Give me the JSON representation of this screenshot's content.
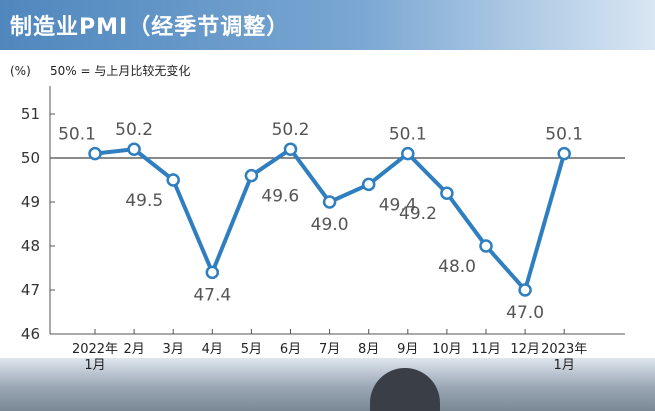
{
  "header": {
    "title": "制造业PMI（经季节调整）"
  },
  "chart_data": {
    "type": "line",
    "title": "制造业PMI（经季节调整）",
    "unit_label": "(%)",
    "reference_note": "50% = 与上月比较无变化",
    "xlabel": "",
    "ylabel": "",
    "ylim": [
      46,
      51.5
    ],
    "yticks": [
      46,
      47,
      48,
      49,
      50,
      51
    ],
    "reference_line": 50,
    "categories": [
      "2022年\n1月",
      "2月",
      "3月",
      "4月",
      "5月",
      "6月",
      "7月",
      "8月",
      "9月",
      "10月",
      "11月",
      "12月",
      "2023年\n1月"
    ],
    "values": [
      50.1,
      50.2,
      49.5,
      47.4,
      49.6,
      50.2,
      49.0,
      49.4,
      50.1,
      49.2,
      48.0,
      47.0,
      50.1
    ],
    "value_labels": [
      "50.1",
      "50.2",
      "49.5",
      "47.4",
      "49.6",
      "50.2",
      "49.0",
      "49.4",
      "50.1",
      "49.2",
      "48.0",
      "47.0",
      "50.1"
    ],
    "grid": false,
    "colors": {
      "line": "#2f7fc0",
      "marker_fill": "#ffffff",
      "axis": "#555555"
    }
  }
}
